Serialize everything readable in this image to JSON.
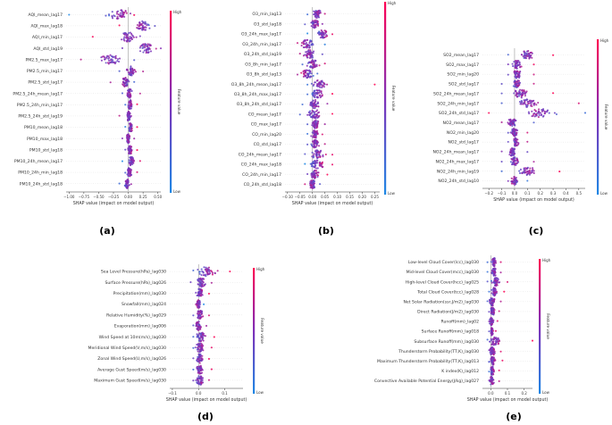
{
  "figure": {
    "colorbar": {
      "high": "High",
      "low": "Low",
      "label": "Feature value"
    },
    "colors": {
      "low": "#1e88e5",
      "high": "#ff0052",
      "zero_line": "#999999"
    }
  },
  "chart_data": [
    {
      "type": "scatter",
      "kind": "shap-beeswarm",
      "panel_label": "(a)",
      "xlabel": "SHAP value (impact on model output)",
      "xlim": [
        -1.05,
        0.55
      ],
      "xticks": [
        -1.0,
        -0.75,
        -0.5,
        -0.25,
        0.0,
        0.25,
        0.5
      ],
      "xtick_labels": [
        "−1.00",
        "−0.75",
        "−0.50",
        "−0.25",
        "0.00",
        "0.25",
        "0.50"
      ],
      "features": [
        {
          "name": "AQI_mean_lag17",
          "min": -1.0,
          "max": 0.1,
          "center": -0.15,
          "spread": 0.18,
          "bias": 0.8
        },
        {
          "name": "AQI_max_lag18",
          "min": -0.15,
          "max": 0.45,
          "center": 0.25,
          "spread": 0.1,
          "bias": -0.6
        },
        {
          "name": "AQI_min_lag17",
          "min": -0.6,
          "max": 0.2,
          "center": 0.0,
          "spread": 0.12,
          "bias": -0.3
        },
        {
          "name": "AQI_std_lag19",
          "min": -0.1,
          "max": 0.55,
          "center": 0.3,
          "spread": 0.12,
          "bias": 0.2
        },
        {
          "name": "PM2.5_max_lag17",
          "min": -0.8,
          "max": 0.1,
          "center": -0.3,
          "spread": 0.15,
          "bias": -0.2
        },
        {
          "name": "PM2.5_min_lag17",
          "min": -0.15,
          "max": 0.25,
          "center": 0.05,
          "spread": 0.06,
          "bias": 0.3
        },
        {
          "name": "PM2.5_std_lag17",
          "min": -0.3,
          "max": 0.1,
          "center": -0.05,
          "spread": 0.05,
          "bias": -0.3
        },
        {
          "name": "PM2.5_24h_mean_lag17",
          "min": -0.1,
          "max": 0.2,
          "center": 0.02,
          "spread": 0.04,
          "bias": 0.4
        },
        {
          "name": "PM2.5_24h_min_lag17",
          "min": -0.05,
          "max": 0.15,
          "center": 0.03,
          "spread": 0.03,
          "bias": 0.5
        },
        {
          "name": "PM2.5_24h_std_lag19",
          "min": -0.15,
          "max": 0.05,
          "center": 0.0,
          "spread": 0.03,
          "bias": -0.2
        },
        {
          "name": "PM10_mean_lag18",
          "min": -0.05,
          "max": 0.15,
          "center": 0.04,
          "spread": 0.03,
          "bias": 0.5
        },
        {
          "name": "PM10_max_lag18",
          "min": -0.1,
          "max": 0.1,
          "center": 0.0,
          "spread": 0.03,
          "bias": 0.1
        },
        {
          "name": "PM10_std_lag18",
          "min": -0.05,
          "max": 0.15,
          "center": 0.03,
          "spread": 0.03,
          "bias": 0.4
        },
        {
          "name": "PM10_24h_mean_lag17",
          "min": -0.1,
          "max": 0.2,
          "center": 0.05,
          "spread": 0.04,
          "bias": 0.6
        },
        {
          "name": "PM10_24h_min_lag18",
          "min": -0.05,
          "max": 0.15,
          "center": 0.02,
          "spread": 0.03,
          "bias": 0.4
        },
        {
          "name": "PM10_24h_std_lag18",
          "min": -0.15,
          "max": 0.05,
          "center": -0.02,
          "spread": 0.03,
          "bias": 0.3
        }
      ]
    },
    {
      "type": "scatter",
      "kind": "shap-beeswarm",
      "panel_label": "(b)",
      "xlabel": "SHAP value (impact on model output)",
      "xlim": [
        -0.11,
        0.27
      ],
      "xticks": [
        -0.1,
        -0.05,
        0.0,
        0.05,
        0.1,
        0.15,
        0.2,
        0.25
      ],
      "xtick_labels": [
        "−0.10",
        "−0.05",
        "0.00",
        "0.05",
        "0.10",
        "0.15",
        "0.20",
        "0.25"
      ],
      "features": [
        {
          "name": "O3_min_lag13",
          "min": -0.02,
          "max": 0.05,
          "center": 0.02,
          "spread": 0.015,
          "bias": 0.3
        },
        {
          "name": "O3_std_lag18",
          "min": -0.03,
          "max": 0.04,
          "center": 0.01,
          "spread": 0.015,
          "bias": 0.2
        },
        {
          "name": "O3_24h_max_lag17",
          "min": -0.02,
          "max": 0.08,
          "center": 0.04,
          "spread": 0.02,
          "bias": 0.6
        },
        {
          "name": "O3_24h_min_lag17",
          "min": -0.06,
          "max": 0.05,
          "center": -0.02,
          "spread": 0.025,
          "bias": -0.5
        },
        {
          "name": "O3_24h_std_lag19",
          "min": -0.05,
          "max": 0.04,
          "center": -0.01,
          "spread": 0.02,
          "bias": -0.2
        },
        {
          "name": "O3_8h_min_lag17",
          "min": -0.04,
          "max": 0.05,
          "center": 0.0,
          "spread": 0.02,
          "bias": 0.3
        },
        {
          "name": "O3_8h_std_lag13",
          "min": -0.06,
          "max": 0.02,
          "center": -0.02,
          "spread": 0.02,
          "bias": -0.4
        },
        {
          "name": "O3_8h_24h_mean_lag17",
          "min": -0.02,
          "max": 0.25,
          "center": 0.03,
          "spread": 0.03,
          "bias": 0.7
        },
        {
          "name": "O3_8h_24h_max_lag17",
          "min": -0.02,
          "max": 0.08,
          "center": 0.02,
          "spread": 0.02,
          "bias": 0.5
        },
        {
          "name": "O3_8h_24h_std_lag17",
          "min": -0.04,
          "max": 0.06,
          "center": 0.01,
          "spread": 0.02,
          "bias": 0.2
        },
        {
          "name": "CO_mean_lag17",
          "min": -0.05,
          "max": 0.08,
          "center": 0.01,
          "spread": 0.025,
          "bias": 0.4
        },
        {
          "name": "CO_max_lag17",
          "min": -0.02,
          "max": 0.05,
          "center": 0.01,
          "spread": 0.015,
          "bias": 0.3
        },
        {
          "name": "CO_min_lag20",
          "min": -0.02,
          "max": 0.04,
          "center": 0.01,
          "spread": 0.012,
          "bias": 0.3
        },
        {
          "name": "CO_std_lag17",
          "min": -0.02,
          "max": 0.05,
          "center": 0.01,
          "spread": 0.012,
          "bias": 0.2
        },
        {
          "name": "CO_24h_mean_lag17",
          "min": -0.03,
          "max": 0.08,
          "center": 0.02,
          "spread": 0.025,
          "bias": 0.5
        },
        {
          "name": "CO_24h_max_lag18",
          "min": -0.03,
          "max": 0.08,
          "center": 0.02,
          "spread": 0.025,
          "bias": 0.6
        },
        {
          "name": "CO_24h_min_lag17",
          "min": -0.02,
          "max": 0.06,
          "center": 0.01,
          "spread": 0.015,
          "bias": 0.4
        },
        {
          "name": "CO_24h_std_lag18",
          "min": -0.03,
          "max": 0.03,
          "center": 0.0,
          "spread": 0.012,
          "bias": -0.2
        }
      ]
    },
    {
      "type": "scatter",
      "kind": "shap-beeswarm",
      "panel_label": "(c)",
      "xlabel": "SHAP value (impact on model output)",
      "xlim": [
        -0.25,
        0.55
      ],
      "xticks": [
        -0.2,
        -0.1,
        0.0,
        0.1,
        0.2,
        0.3,
        0.4,
        0.5
      ],
      "xtick_labels": [
        "−0.2",
        "−0.1",
        "0.0",
        "0.1",
        "0.2",
        "0.3",
        "0.4",
        "0.5"
      ],
      "features": [
        {
          "name": "SO2_mean_lag17",
          "min": -0.05,
          "max": 0.3,
          "center": 0.1,
          "spread": 0.05,
          "bias": 0.6
        },
        {
          "name": "SO2_max_lag17",
          "min": -0.05,
          "max": 0.15,
          "center": 0.02,
          "spread": 0.03,
          "bias": 0.3
        },
        {
          "name": "SO2_min_lag20",
          "min": -0.05,
          "max": 0.15,
          "center": 0.02,
          "spread": 0.03,
          "bias": 0.2
        },
        {
          "name": "SO2_std_lag17",
          "min": -0.1,
          "max": 0.15,
          "center": 0.02,
          "spread": 0.03,
          "bias": 0.3
        },
        {
          "name": "SO2_24h_mean_lag17",
          "min": -0.1,
          "max": 0.3,
          "center": 0.05,
          "spread": 0.05,
          "bias": 0.5
        },
        {
          "name": "SO2_24h_min_lag17",
          "min": -0.1,
          "max": 0.5,
          "center": 0.1,
          "spread": 0.07,
          "bias": 0.4
        },
        {
          "name": "SO2_24h_std_lag17",
          "min": -0.2,
          "max": 0.55,
          "center": 0.2,
          "spread": 0.1,
          "bias": -0.5
        },
        {
          "name": "NO2_mean_lag17",
          "min": -0.1,
          "max": 0.15,
          "center": -0.02,
          "spread": 0.03,
          "bias": -0.3
        },
        {
          "name": "NO2_min_lag20",
          "min": -0.05,
          "max": 0.1,
          "center": 0.0,
          "spread": 0.025,
          "bias": 0.2
        },
        {
          "name": "NO2_std_lag17",
          "min": -0.05,
          "max": 0.1,
          "center": 0.01,
          "spread": 0.02,
          "bias": 0.3
        },
        {
          "name": "NO2_24h_mean_lag17",
          "min": -0.1,
          "max": 0.1,
          "center": -0.02,
          "spread": 0.025,
          "bias": -0.2
        },
        {
          "name": "NO2_24h_max_lag17",
          "min": -0.1,
          "max": 0.15,
          "center": 0.0,
          "spread": 0.03,
          "bias": 0.3
        },
        {
          "name": "NO2_24h_min_lag19",
          "min": -0.1,
          "max": 0.35,
          "center": 0.1,
          "spread": 0.06,
          "bias": 0.5
        },
        {
          "name": "NO2_24h_std_lag10",
          "min": -0.05,
          "max": 0.1,
          "center": 0.0,
          "spread": 0.025,
          "bias": -0.3
        }
      ]
    },
    {
      "type": "scatter",
      "kind": "shap-beeswarm",
      "panel_label": "(d)",
      "xlabel": "SHAP value (impact on model output)",
      "xlim": [
        -0.11,
        0.17
      ],
      "xticks": [
        -0.1,
        0.0,
        0.1
      ],
      "xtick_labels": [
        "−0.1",
        "0.0",
        "0.1"
      ],
      "features": [
        {
          "name": "Sea Level Pressure(hPa)_lag030",
          "min": -0.02,
          "max": 0.12,
          "center": 0.03,
          "spread": 0.03,
          "bias": 0.6
        },
        {
          "name": "Surface Pressure(hPa)_lag026",
          "min": -0.03,
          "max": 0.05,
          "center": 0.01,
          "spread": 0.015,
          "bias": 0.3
        },
        {
          "name": "Precipitation(mm)_lag030",
          "min": -0.01,
          "max": 0.04,
          "center": 0.005,
          "spread": 0.01,
          "bias": 0.4
        },
        {
          "name": "Snowfall(mm)_lag024",
          "min": -0.01,
          "max": 0.02,
          "center": 0.0,
          "spread": 0.006,
          "bias": -0.6
        },
        {
          "name": "Relative Humidity(%)_lag029",
          "min": -0.02,
          "max": 0.04,
          "center": 0.005,
          "spread": 0.012,
          "bias": 0.2
        },
        {
          "name": "Evaporation(mm)_lag006",
          "min": -0.02,
          "max": 0.03,
          "center": 0.0,
          "spread": 0.01,
          "bias": 0.2
        },
        {
          "name": "Wind Speed at 10m(m/s)_lag030",
          "min": -0.02,
          "max": 0.06,
          "center": 0.01,
          "spread": 0.02,
          "bias": 0.4
        },
        {
          "name": "Meridional Wind Speed(V,m/s)_lag030",
          "min": -0.02,
          "max": 0.05,
          "center": 0.005,
          "spread": 0.015,
          "bias": 0.3
        },
        {
          "name": "Zonal Wind Speed(U,m/s)_lag026",
          "min": -0.02,
          "max": 0.04,
          "center": 0.005,
          "spread": 0.012,
          "bias": 0.3
        },
        {
          "name": "Average Gust Speed(m/s)_lag030",
          "min": -0.02,
          "max": 0.05,
          "center": 0.005,
          "spread": 0.012,
          "bias": 0.4
        },
        {
          "name": "Maximum Gust Speed(m/s)_lag030",
          "min": -0.02,
          "max": 0.04,
          "center": 0.005,
          "spread": 0.012,
          "bias": 0.3
        }
      ]
    },
    {
      "type": "scatter",
      "kind": "shap-beeswarm",
      "panel_label": "(e)",
      "xlabel": "SHAP value (impact on model output)",
      "xlim": [
        -0.05,
        0.25
      ],
      "xticks": [
        0.0,
        0.1,
        0.2
      ],
      "xtick_labels": [
        "0.0",
        "0.1",
        "0.2"
      ],
      "features": [
        {
          "name": "Low-level Cloud Cover(lcc)_lag030",
          "min": -0.02,
          "max": 0.06,
          "center": 0.02,
          "spread": 0.015,
          "bias": 0.4
        },
        {
          "name": "Mid-level Cloud Cover(mcc)_lag030",
          "min": -0.02,
          "max": 0.06,
          "center": 0.02,
          "spread": 0.015,
          "bias": 0.3
        },
        {
          "name": "High-level Cloud Cover(hcc)_lag025",
          "min": -0.02,
          "max": 0.1,
          "center": 0.03,
          "spread": 0.02,
          "bias": 0.5
        },
        {
          "name": "Total Cloud Cover(tcc)_lag028",
          "min": -0.01,
          "max": 0.08,
          "center": 0.02,
          "spread": 0.015,
          "bias": 0.4
        },
        {
          "name": "Net Solar Radiation(ssr,J/m2)_lag030",
          "min": -0.02,
          "max": 0.06,
          "center": 0.01,
          "spread": 0.015,
          "bias": 0.3
        },
        {
          "name": "Direct Radiation(J/m2)_lag030",
          "min": -0.01,
          "max": 0.05,
          "center": 0.01,
          "spread": 0.012,
          "bias": 0.3
        },
        {
          "name": "Runoff(mm)_lag02",
          "min": -0.01,
          "max": 0.04,
          "center": 0.005,
          "spread": 0.01,
          "bias": 0.2
        },
        {
          "name": "Surface Runoff(mm)_lag018",
          "min": -0.01,
          "max": 0.03,
          "center": 0.005,
          "spread": 0.008,
          "bias": 0.3
        },
        {
          "name": "Subsurface Runoff(mm)_lag030",
          "min": -0.02,
          "max": 0.25,
          "center": 0.02,
          "spread": 0.03,
          "bias": 0.6
        },
        {
          "name": "Thunderstorm Probability(TT,K)_lag030",
          "min": -0.01,
          "max": 0.06,
          "center": 0.01,
          "spread": 0.015,
          "bias": 0.3
        },
        {
          "name": "Maximum Thunderstorm Probability(TT,K)_lag013",
          "min": -0.01,
          "max": 0.07,
          "center": 0.01,
          "spread": 0.015,
          "bias": 0.4
        },
        {
          "name": "K index(K)_lag012",
          "min": -0.01,
          "max": 0.05,
          "center": 0.01,
          "spread": 0.012,
          "bias": 0.3
        },
        {
          "name": "Convective Available Potential Energy(J/kg)_lag027",
          "min": -0.01,
          "max": 0.05,
          "center": 0.005,
          "spread": 0.012,
          "bias": 0.3
        }
      ]
    }
  ]
}
